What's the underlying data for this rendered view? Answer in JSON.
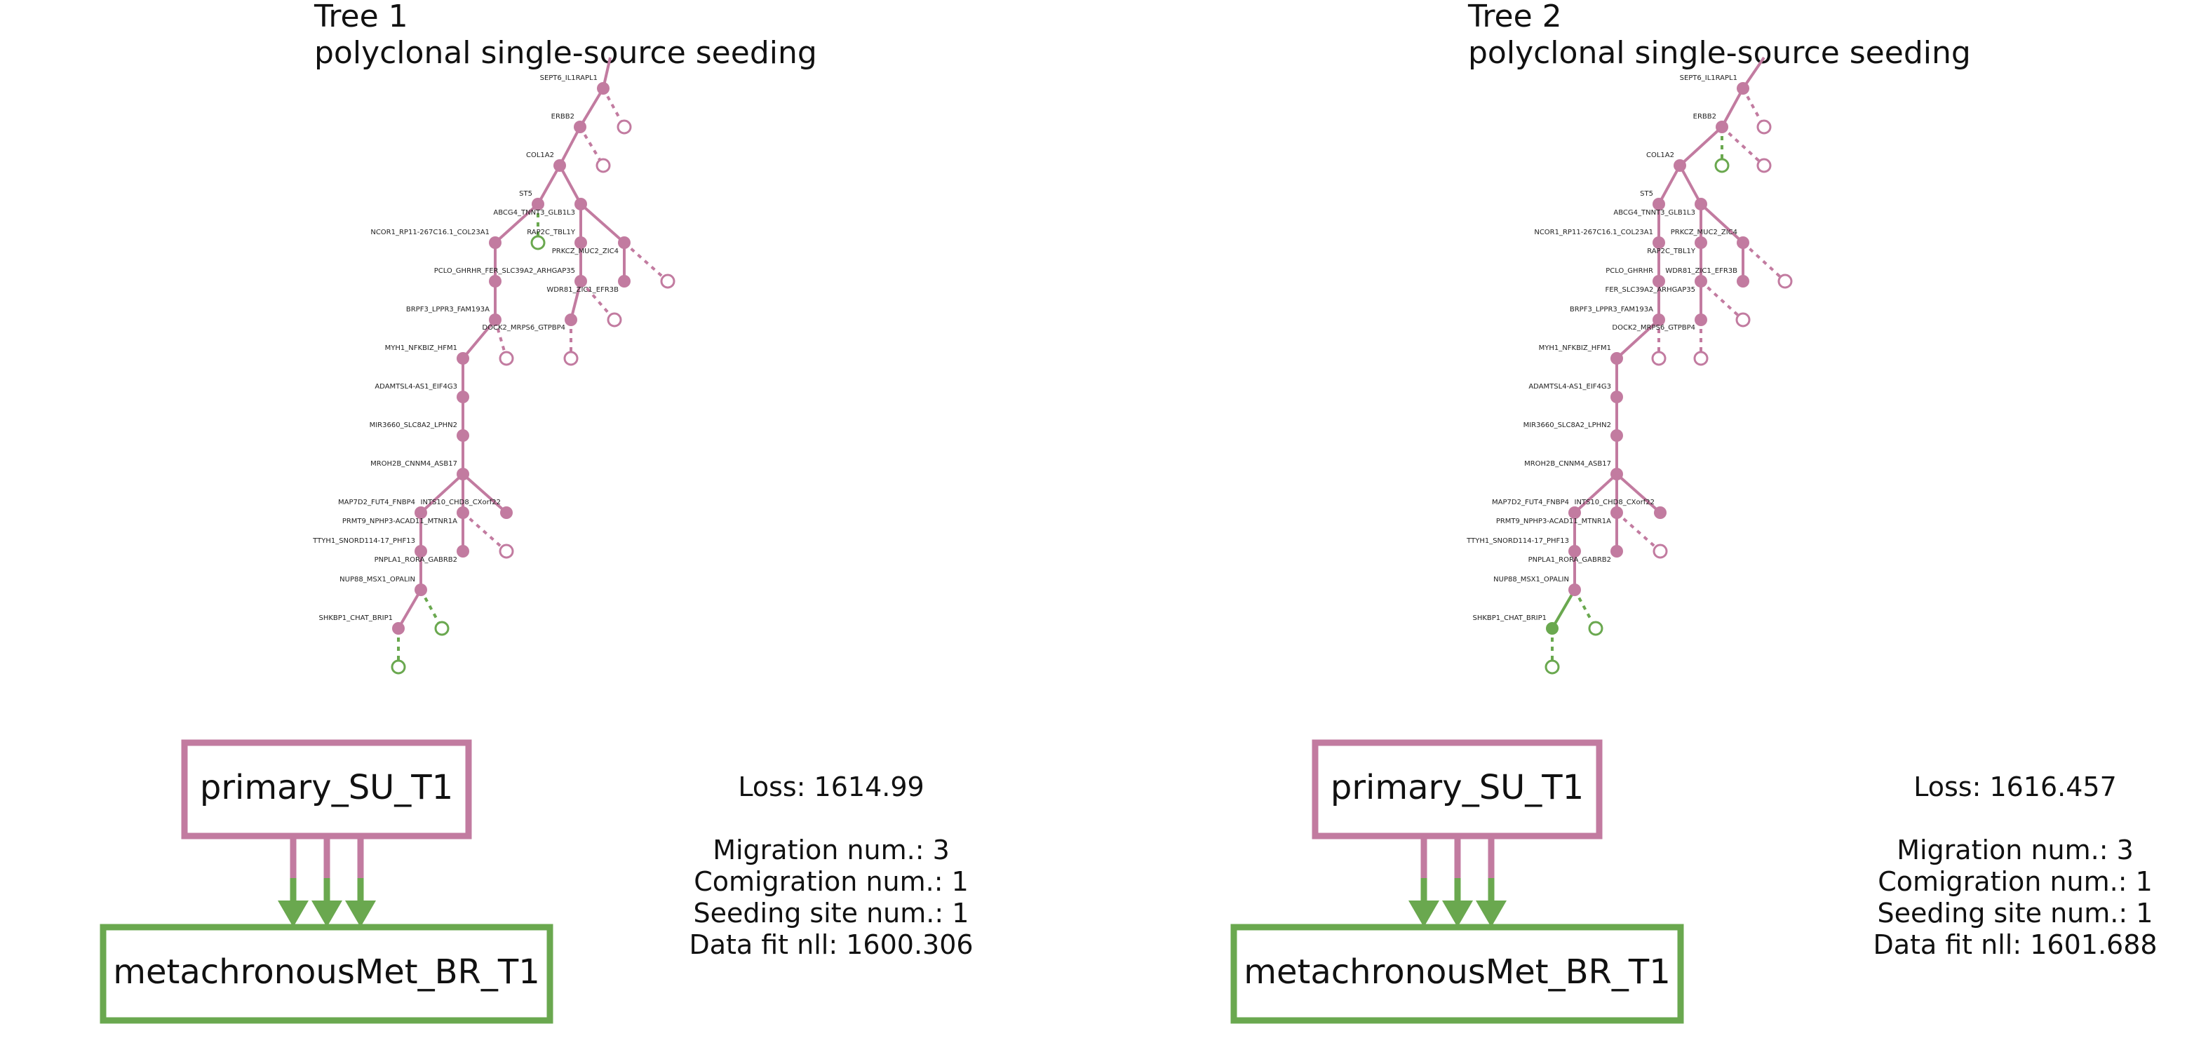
{
  "colors": {
    "primary": "#c27ba0",
    "met": "#6aa84f"
  },
  "panels": [
    {
      "tree_label": "Tree 1",
      "pattern": "polyclonal single-source seeding",
      "primary_site": "primary_SU_T1",
      "met_site": "metachronousMet_BR_T1",
      "loss_text": "Loss: 1614.99",
      "migration_text": "Migration num.: 3",
      "comigration_text": "Comigration num.: 1",
      "seeding_text": "Seeding site num.: 1",
      "datafit_text": "Data fit nll: 1600.306",
      "node_labels": {
        "n0": "SEPT6_IL1RAPL1",
        "n1": "ERBB2",
        "n2": "COL1A2",
        "n3": "ST5",
        "n4": "ABCG4_TNNT3_GLB1L3",
        "n5": "RAP2C_TBL1Y",
        "n6": "NCOR1_RP11-267C16.1_COL23A1",
        "n7": "PRKCZ_MUC2_ZIC4",
        "n8": "PCLO_GHRHR_FER_SLC39A2_ARHGAP35",
        "n9": "WDR81_ZIC1_EFR3B",
        "n10": "BRPF3_LPPR3_FAM193A",
        "n11": "DOCK2_MRPS6_GTPBP4",
        "n12": "MYH1_NFKBIZ_HFM1",
        "n13": "ADAMTSL4-AS1_EIF4G3",
        "n14": "MIR3660_SLC8A2_LPHN2",
        "n15": "MROH2B_CNNM4_ASB17",
        "n16": "MAP7D2_FUT4_FNBP4",
        "n17": "INTS10_CHD8_CXorf22",
        "n18": "PRMT9_NPHP3-ACAD11_MTNR1A",
        "n19": "TTYH1_SNORD114-17_PHF13",
        "n20": "PNPLA1_RORA_GABRB2",
        "n21": "NUP88_MSX1_OPALIN",
        "n22": "SHKBP1_CHAT_BRIP1"
      }
    },
    {
      "tree_label": "Tree 2",
      "pattern": "polyclonal single-source seeding",
      "primary_site": "primary_SU_T1",
      "met_site": "metachronousMet_BR_T1",
      "loss_text": "Loss: 1616.457",
      "migration_text": "Migration num.: 3",
      "comigration_text": "Comigration num.: 1",
      "seeding_text": "Seeding site num.: 1",
      "datafit_text": "Data fit nll: 1601.688",
      "node_labels": {
        "n0": "SEPT6_IL1RAPL1",
        "n1": "ERBB2",
        "n2": "COL1A2",
        "n3": "ST5",
        "n4": "ABCG4_TNNT3_GLB1L3",
        "n5": "NCOR1_RP11-267C16.1_COL23A1",
        "n6": "PRKCZ_MUC2_ZIC4",
        "n7": "RAP2C_TBL1Y",
        "n8": "PCLO_GHRHR",
        "n9": "WDR81_ZIC1_EFR3B",
        "n10": "FER_SLC39A2_ARHGAP35",
        "n11": "BRPF3_LPPR3_FAM193A",
        "n12": "DOCK2_MRPS6_GTPBP4",
        "n13": "MYH1_NFKBIZ_HFM1",
        "n14": "ADAMTSL4-AS1_EIF4G3",
        "n15": "MIR3660_SLC8A2_LPHN2",
        "n16": "MROH2B_CNNM4_ASB17",
        "n17": "MAP7D2_FUT4_FNBP4",
        "n18": "INTS10_CHD8_CXorf22",
        "n19": "PRMT9_NPHP3-ACAD11_MTNR1A",
        "n20": "TTYH1_SNORD114-17_PHF13",
        "n21": "PNPLA1_RORA_GABRB2",
        "n22": "NUP88_MSX1_OPALIN",
        "n23": "SHKBP1_CHAT_BRIP1"
      }
    }
  ]
}
